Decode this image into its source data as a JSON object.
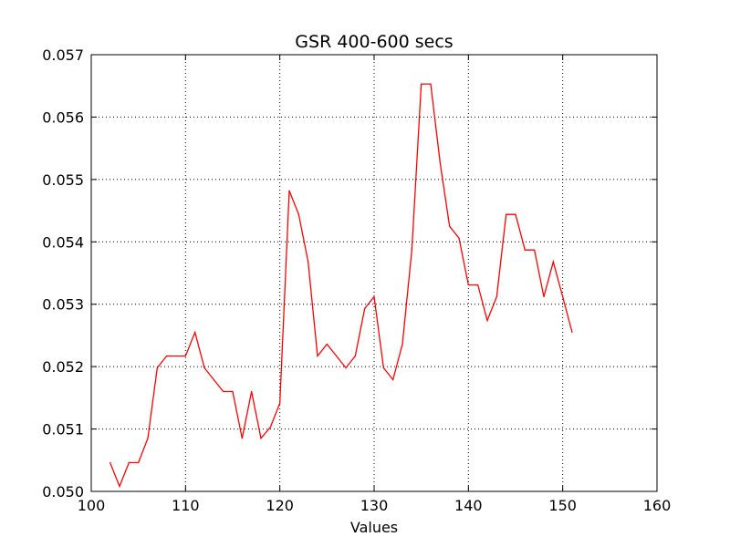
{
  "chart_data": {
    "type": "line",
    "title": "GSR 400-600 secs",
    "xlabel": "Values",
    "ylabel": "",
    "xlim": [
      100,
      160
    ],
    "ylim": [
      0.05,
      0.057
    ],
    "x_ticks": [
      100,
      110,
      120,
      130,
      140,
      150,
      160
    ],
    "x_tick_labels": [
      "100",
      "110",
      "120",
      "130",
      "140",
      "150",
      "160"
    ],
    "y_ticks": [
      0.05,
      0.051,
      0.052,
      0.053,
      0.054,
      0.055,
      0.056,
      0.057
    ],
    "y_tick_labels": [
      "0.050",
      "0.051",
      "0.052",
      "0.053",
      "0.054",
      "0.055",
      "0.056",
      "0.057"
    ],
    "grid": true,
    "line_color": "#ff0000",
    "series": [
      {
        "x": [
          102,
          103,
          104,
          105,
          106,
          107,
          108,
          109,
          110,
          111,
          112,
          113,
          114,
          115,
          116,
          117,
          118,
          119,
          120,
          121,
          122,
          123,
          124,
          125,
          126,
          127,
          128,
          129,
          130,
          131,
          132,
          133,
          134,
          135,
          136,
          137,
          138,
          139,
          140,
          141,
          142,
          143,
          144,
          145,
          146,
          147,
          148,
          149,
          150,
          151
        ],
        "y": [
          0.05046,
          0.05008,
          0.05046,
          0.05046,
          0.05085,
          0.05198,
          0.05217,
          0.05217,
          0.05217,
          0.05255,
          0.05198,
          0.05179,
          0.0516,
          0.0516,
          0.05085,
          0.0516,
          0.05085,
          0.05103,
          0.05141,
          0.05482,
          0.05444,
          0.05368,
          0.05217,
          0.05236,
          0.05217,
          0.05198,
          0.05217,
          0.05293,
          0.05312,
          0.05198,
          0.05179,
          0.05236,
          0.05387,
          0.05653,
          0.05653,
          0.05527,
          0.05425,
          0.05406,
          0.05331,
          0.05331,
          0.05274,
          0.05312,
          0.05444,
          0.05444,
          0.05387,
          0.05387,
          0.05312,
          0.05368,
          0.05312,
          0.05255
        ]
      }
    ]
  }
}
